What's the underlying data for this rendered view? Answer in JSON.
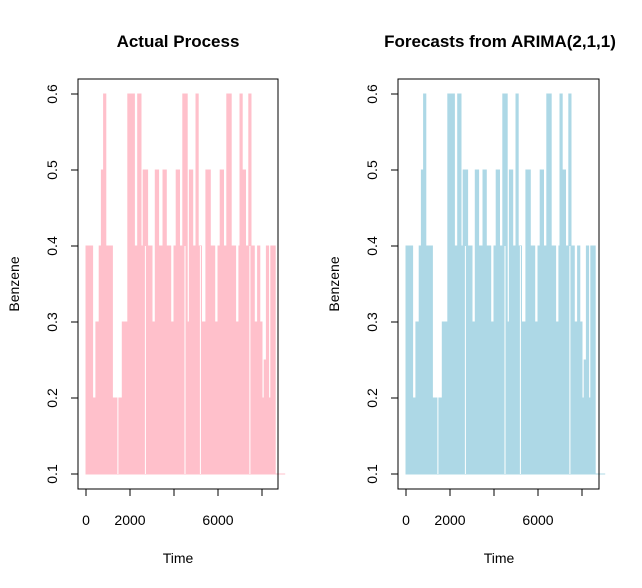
{
  "chart_data": [
    {
      "type": "area",
      "title": "Actual Process",
      "xlabel": "Time",
      "ylabel": "Benzene",
      "color": "#FFC0CB",
      "xlim": [
        -400,
        9400
      ],
      "ylim": [
        0.1,
        0.6
      ],
      "x_ticks": [
        0,
        2000,
        6000
      ],
      "x_tick_labels": [
        "0",
        "2000",
        "6000"
      ],
      "y_ticks": [
        0.1,
        0.2,
        0.3,
        0.4,
        0.5,
        0.6
      ],
      "y_tick_labels": [
        "0.1",
        "0.2",
        "0.3",
        "0.4",
        "0.5",
        "0.6"
      ],
      "x_data_range": [
        0,
        8600
      ],
      "series": [
        {
          "x": [
            0,
            300,
            450,
            600,
            700,
            800,
            900,
            1000,
            1200,
            1500,
            1650,
            1800,
            1900,
            2050,
            2200,
            2350,
            2500,
            2600,
            2800,
            3000,
            3150,
            3300,
            3500,
            3650,
            3850,
            4000,
            4100,
            4250,
            4400,
            4600,
            4700,
            4850,
            5000,
            5100,
            5250,
            5450,
            5650,
            5850,
            6000,
            6100,
            6250,
            6400,
            6600,
            6800,
            6950,
            7000,
            7100,
            7250,
            7400,
            7500,
            7650,
            7800,
            7900,
            8000,
            8100,
            8200,
            8300,
            8400,
            8600
          ],
          "y": [
            0.4,
            0.2,
            0.3,
            0.4,
            0.5,
            0.6,
            0.4,
            0.4,
            0.2,
            0.2,
            0.3,
            0.3,
            0.6,
            0.6,
            0.4,
            0.6,
            0.4,
            0.5,
            0.4,
            0.3,
            0.5,
            0.4,
            0.5,
            0.4,
            0.3,
            0.4,
            0.5,
            0.4,
            0.6,
            0.3,
            0.5,
            0.4,
            0.6,
            0.4,
            0.3,
            0.5,
            0.4,
            0.3,
            0.4,
            0.5,
            0.4,
            0.6,
            0.4,
            0.3,
            0.4,
            0.6,
            0.5,
            0.4,
            0.6,
            0.4,
            0.3,
            0.4,
            0.3,
            0.2,
            0.25,
            0.4,
            0.2,
            0.4,
            0.1
          ]
        }
      ]
    },
    {
      "type": "area",
      "title": "Forecasts from ARIMA(2,1,1)",
      "xlabel": "Time",
      "ylabel": "Benzene",
      "color": "#ADD8E6",
      "xlim": [
        -400,
        9400
      ],
      "ylim": [
        0.1,
        0.6
      ],
      "x_ticks": [
        0,
        2000,
        6000
      ],
      "x_tick_labels": [
        "0",
        "2000",
        "6000"
      ],
      "y_ticks": [
        0.1,
        0.2,
        0.3,
        0.4,
        0.5,
        0.6
      ],
      "y_tick_labels": [
        "0.1",
        "0.2",
        "0.3",
        "0.4",
        "0.5",
        "0.6"
      ],
      "x_data_range": [
        0,
        8600
      ],
      "series": [
        {
          "x": [
            0,
            300,
            450,
            600,
            700,
            800,
            900,
            1000,
            1200,
            1500,
            1650,
            1800,
            1900,
            2050,
            2200,
            2350,
            2500,
            2600,
            2800,
            3000,
            3150,
            3300,
            3500,
            3650,
            3850,
            4000,
            4100,
            4250,
            4400,
            4600,
            4700,
            4850,
            5000,
            5100,
            5250,
            5450,
            5650,
            5850,
            6000,
            6100,
            6250,
            6400,
            6600,
            6800,
            6950,
            7000,
            7100,
            7250,
            7400,
            7500,
            7650,
            7800,
            7900,
            8000,
            8100,
            8200,
            8300,
            8400,
            8600
          ],
          "y": [
            0.4,
            0.2,
            0.3,
            0.4,
            0.5,
            0.6,
            0.4,
            0.4,
            0.2,
            0.2,
            0.3,
            0.3,
            0.6,
            0.6,
            0.4,
            0.6,
            0.4,
            0.5,
            0.4,
            0.3,
            0.5,
            0.4,
            0.5,
            0.4,
            0.3,
            0.4,
            0.5,
            0.4,
            0.6,
            0.3,
            0.5,
            0.4,
            0.6,
            0.4,
            0.3,
            0.5,
            0.4,
            0.3,
            0.4,
            0.5,
            0.4,
            0.6,
            0.4,
            0.3,
            0.4,
            0.6,
            0.5,
            0.4,
            0.6,
            0.4,
            0.3,
            0.4,
            0.3,
            0.2,
            0.25,
            0.4,
            0.2,
            0.4,
            0.1
          ]
        }
      ]
    }
  ]
}
